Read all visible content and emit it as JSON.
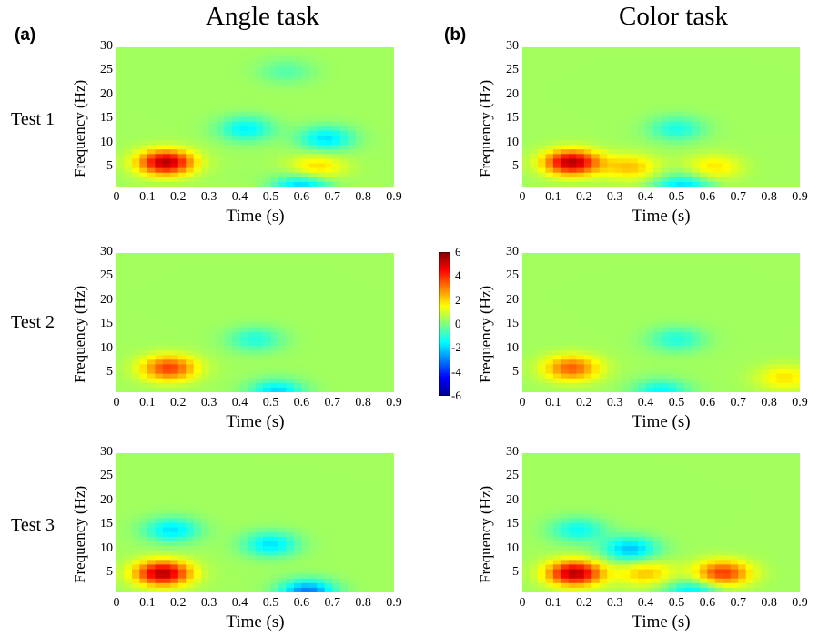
{
  "columns": [
    {
      "panel_label": "(a)",
      "title": "Angle task"
    },
    {
      "panel_label": "(b)",
      "title": "Color task"
    }
  ],
  "rows": [
    "Test 1",
    "Test 2",
    "Test 3"
  ],
  "axes": {
    "xlabel": "Time (s)",
    "ylabel": "Frequency (Hz)",
    "xticks": [
      "0",
      "0.1",
      "0.2",
      "0.3",
      "0.4",
      "0.5",
      "0.6",
      "0.7",
      "0.8",
      "0.9"
    ],
    "yticks": [
      "30",
      "25",
      "20",
      "15",
      "10",
      "5"
    ]
  },
  "colorbar": {
    "ticks": [
      "6",
      "4",
      "2",
      "0",
      "-2",
      "-4",
      "-6"
    ],
    "range": [
      -6,
      6
    ],
    "colormap": "jet"
  },
  "chart_data": [
    {
      "type": "heatmap",
      "panel": "Angle task / Test 1",
      "xlabel": "Time (s)",
      "ylabel": "Frequency (Hz)",
      "xlim": [
        0,
        0.9
      ],
      "ylim": [
        1,
        30
      ],
      "clim": [
        -6,
        6
      ],
      "blobs": [
        {
          "t": 0.16,
          "f": 6,
          "v": 5.0
        },
        {
          "t": 0.65,
          "f": 5,
          "v": 1.6
        },
        {
          "t": 0.42,
          "f": 13,
          "v": -2.0
        },
        {
          "t": 0.68,
          "f": 11,
          "v": -2.2
        },
        {
          "t": 0.6,
          "f": 1,
          "v": -2.5
        },
        {
          "t": 0.55,
          "f": 25,
          "v": -0.9
        }
      ]
    },
    {
      "type": "heatmap",
      "panel": "Color task / Test 1",
      "xlabel": "Time (s)",
      "ylabel": "Frequency (Hz)",
      "xlim": [
        0,
        0.9
      ],
      "ylim": [
        1,
        30
      ],
      "clim": [
        -6,
        6
      ],
      "blobs": [
        {
          "t": 0.16,
          "f": 6,
          "v": 5.0
        },
        {
          "t": 0.35,
          "f": 5,
          "v": 1.8
        },
        {
          "t": 0.62,
          "f": 5,
          "v": 1.4
        },
        {
          "t": 0.5,
          "f": 13,
          "v": -1.6
        },
        {
          "t": 0.52,
          "f": 1,
          "v": -2.3
        }
      ]
    },
    {
      "type": "heatmap",
      "panel": "Angle task / Test 2",
      "xlabel": "Time (s)",
      "ylabel": "Frequency (Hz)",
      "xlim": [
        0,
        0.9
      ],
      "ylim": [
        1,
        30
      ],
      "clim": [
        -6,
        6
      ],
      "blobs": [
        {
          "t": 0.17,
          "f": 6,
          "v": 3.4
        },
        {
          "t": 0.45,
          "f": 12,
          "v": -1.5
        },
        {
          "t": 0.52,
          "f": 1,
          "v": -2.4
        }
      ]
    },
    {
      "type": "heatmap",
      "panel": "Color task / Test 2",
      "xlabel": "Time (s)",
      "ylabel": "Frequency (Hz)",
      "xlim": [
        0,
        0.9
      ],
      "ylim": [
        1,
        30
      ],
      "clim": [
        -6,
        6
      ],
      "blobs": [
        {
          "t": 0.16,
          "f": 6,
          "v": 3.0
        },
        {
          "t": 0.85,
          "f": 4,
          "v": 1.4
        },
        {
          "t": 0.5,
          "f": 12,
          "v": -1.5
        },
        {
          "t": 0.45,
          "f": 1,
          "v": -2.0
        }
      ]
    },
    {
      "type": "heatmap",
      "panel": "Angle task / Test 3",
      "xlabel": "Time (s)",
      "ylabel": "Frequency (Hz)",
      "xlim": [
        0,
        0.9
      ],
      "ylim": [
        1,
        30
      ],
      "clim": [
        -6,
        6
      ],
      "blobs": [
        {
          "t": 0.15,
          "f": 5,
          "v": 5.0
        },
        {
          "t": 0.18,
          "f": 14,
          "v": -2.2
        },
        {
          "t": 0.5,
          "f": 11,
          "v": -2.2
        },
        {
          "t": 0.62,
          "f": 1,
          "v": -3.5
        }
      ]
    },
    {
      "type": "heatmap",
      "panel": "Color task / Test 3",
      "xlabel": "Time (s)",
      "ylabel": "Frequency (Hz)",
      "xlim": [
        0,
        0.9
      ],
      "ylim": [
        1,
        30
      ],
      "clim": [
        -6,
        6
      ],
      "blobs": [
        {
          "t": 0.17,
          "f": 5,
          "v": 5.0
        },
        {
          "t": 0.65,
          "f": 5,
          "v": 3.5
        },
        {
          "t": 0.4,
          "f": 5,
          "v": 1.8
        },
        {
          "t": 0.35,
          "f": 10,
          "v": -2.6
        },
        {
          "t": 0.18,
          "f": 14,
          "v": -1.8
        },
        {
          "t": 0.55,
          "f": 1,
          "v": -2.2
        }
      ]
    }
  ]
}
